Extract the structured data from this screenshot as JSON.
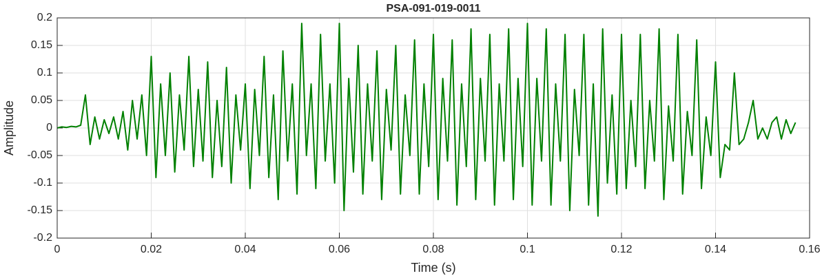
{
  "chart_data": {
    "type": "line",
    "title": "PSA-091-019-0011",
    "x_label": "Time (s)",
    "y_label": "Amplitude",
    "color": "#008000",
    "grid": true,
    "xlim": [
      0,
      0.16
    ],
    "xticks": [
      0,
      0.02,
      0.04,
      0.06,
      0.08,
      0.1,
      0.12,
      0.14,
      0.16
    ],
    "ylim": [
      -0.2,
      0.2
    ],
    "yticks": [
      -0.2,
      -0.15,
      -0.1,
      -0.05,
      0,
      0.05,
      0.1,
      0.15,
      0.2
    ],
    "x": [
      0,
      0.001,
      0.002,
      0.003,
      0.004,
      0.005,
      0.006,
      0.007,
      0.008,
      0.009,
      0.01,
      0.011,
      0.012,
      0.013,
      0.014,
      0.015,
      0.016,
      0.017,
      0.018,
      0.019,
      0.02,
      0.021,
      0.022,
      0.023,
      0.024,
      0.025,
      0.026,
      0.027,
      0.028,
      0.029,
      0.03,
      0.031,
      0.032,
      0.033,
      0.034,
      0.035,
      0.036,
      0.037,
      0.038,
      0.039,
      0.04,
      0.041,
      0.042,
      0.043,
      0.044,
      0.045,
      0.046,
      0.047,
      0.048,
      0.049,
      0.05,
      0.051,
      0.052,
      0.053,
      0.054,
      0.055,
      0.056,
      0.057,
      0.058,
      0.059,
      0.06,
      0.061,
      0.062,
      0.063,
      0.064,
      0.065,
      0.066,
      0.067,
      0.068,
      0.069,
      0.07,
      0.071,
      0.072,
      0.073,
      0.074,
      0.075,
      0.076,
      0.077,
      0.078,
      0.079,
      0.08,
      0.081,
      0.082,
      0.083,
      0.084,
      0.085,
      0.086,
      0.087,
      0.088,
      0.089,
      0.09,
      0.091,
      0.092,
      0.093,
      0.094,
      0.095,
      0.096,
      0.097,
      0.098,
      0.099,
      0.1,
      0.101,
      0.102,
      0.103,
      0.104,
      0.105,
      0.106,
      0.107,
      0.108,
      0.109,
      0.11,
      0.111,
      0.112,
      0.113,
      0.114,
      0.115,
      0.116,
      0.117,
      0.118,
      0.119,
      0.12,
      0.121,
      0.122,
      0.123,
      0.124,
      0.125,
      0.126,
      0.127,
      0.128,
      0.129,
      0.13,
      0.131,
      0.132,
      0.133,
      0.134,
      0.135,
      0.136,
      0.137,
      0.138,
      0.139,
      0.14,
      0.141,
      0.142,
      0.143,
      0.144,
      0.145,
      0.146,
      0.147,
      0.148,
      0.149,
      0.15,
      0.151,
      0.152,
      0.153,
      0.154,
      0.155,
      0.156,
      0.157
    ],
    "values": [
      0,
      0.002,
      0.001,
      0.003,
      0.002,
      0.005,
      0.06,
      -0.03,
      0.02,
      -0.02,
      0.015,
      -0.01,
      0.02,
      -0.02,
      0.03,
      -0.04,
      0.05,
      -0.02,
      0.06,
      -0.05,
      0.13,
      -0.09,
      0.08,
      -0.05,
      0.1,
      -0.08,
      0.06,
      -0.04,
      0.13,
      -0.07,
      0.07,
      -0.06,
      0.12,
      -0.09,
      0.05,
      -0.07,
      0.11,
      -0.1,
      0.06,
      -0.04,
      0.08,
      -0.11,
      0.07,
      -0.05,
      0.13,
      -0.09,
      0.06,
      -0.13,
      0.14,
      -0.06,
      0.08,
      -0.12,
      0.19,
      -0.05,
      0.08,
      -0.11,
      0.17,
      -0.06,
      0.08,
      -0.1,
      0.19,
      -0.15,
      0.09,
      -0.08,
      0.15,
      -0.12,
      0.08,
      -0.06,
      0.14,
      -0.13,
      0.07,
      -0.04,
      0.15,
      -0.12,
      0.06,
      -0.05,
      0.16,
      -0.12,
      0.08,
      -0.07,
      0.17,
      -0.13,
      0.09,
      -0.06,
      0.16,
      -0.14,
      0.08,
      -0.07,
      0.18,
      -0.13,
      0.09,
      -0.06,
      0.17,
      -0.14,
      0.08,
      -0.06,
      0.18,
      -0.13,
      0.09,
      -0.07,
      0.19,
      -0.14,
      0.09,
      -0.06,
      0.18,
      -0.14,
      0.08,
      -0.06,
      0.17,
      -0.15,
      0.07,
      -0.05,
      0.17,
      -0.14,
      0.08,
      -0.16,
      0.18,
      -0.1,
      0.06,
      -0.12,
      0.17,
      -0.11,
      0.05,
      -0.07,
      0.17,
      -0.11,
      0.05,
      -0.06,
      0.18,
      -0.13,
      0.04,
      -0.06,
      0.17,
      -0.12,
      0.03,
      -0.05,
      0.16,
      -0.11,
      0.02,
      -0.05,
      0.12,
      -0.09,
      -0.03,
      -0.04,
      0.1,
      -0.03,
      -0.02,
      0.01,
      0.05,
      -0.02,
      0,
      -0.02,
      0.01,
      0.02,
      -0.02,
      0.015,
      -0.01,
      0.01
    ]
  }
}
